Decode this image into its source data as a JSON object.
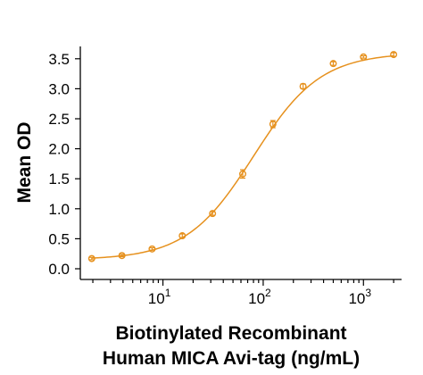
{
  "chart_data": {
    "type": "scatter",
    "title": "",
    "xlabel_line1": "Biotinylated Recombinant",
    "xlabel_line2": "Human MICA Avi-tag (ng/mL)",
    "ylabel": "Mean OD",
    "x_scale": "log",
    "xlim": [
      1.5,
      2400
    ],
    "ylim": [
      0,
      3.75
    ],
    "x_ticks": [
      {
        "base": "10",
        "exp": "1",
        "value": 10
      },
      {
        "base": "10",
        "exp": "2",
        "value": 100
      },
      {
        "base": "10",
        "exp": "3",
        "value": 1000
      }
    ],
    "y_ticks": [
      {
        "label": "0.0",
        "value": 0.0
      },
      {
        "label": "0.5",
        "value": 0.5
      },
      {
        "label": "1.0",
        "value": 1.0
      },
      {
        "label": "1.5",
        "value": 1.5
      },
      {
        "label": "2.0",
        "value": 2.0
      },
      {
        "label": "2.5",
        "value": 2.5
      },
      {
        "label": "3.0",
        "value": 3.0
      },
      {
        "label": "3.5",
        "value": 3.5
      }
    ],
    "series": [
      {
        "color": "#E6911E",
        "marker": "open-circle",
        "x": [
          1.95,
          3.9,
          7.8,
          15.6,
          31.25,
          62.5,
          125,
          250,
          500,
          1000,
          2000
        ],
        "y": [
          0.17,
          0.22,
          0.33,
          0.55,
          0.92,
          1.58,
          2.41,
          3.04,
          3.42,
          3.53,
          3.57
        ],
        "err": [
          0.02,
          0.02,
          0.02,
          0.03,
          0.03,
          0.07,
          0.06,
          0.04,
          0.03,
          0.02,
          0.03
        ]
      }
    ],
    "fit_curve": {
      "type": "4PL",
      "bottom": 0.15,
      "top": 3.6,
      "ec50": 80,
      "hill": 1.3,
      "color": "#E6911E"
    },
    "grid": false,
    "legend": "none"
  }
}
